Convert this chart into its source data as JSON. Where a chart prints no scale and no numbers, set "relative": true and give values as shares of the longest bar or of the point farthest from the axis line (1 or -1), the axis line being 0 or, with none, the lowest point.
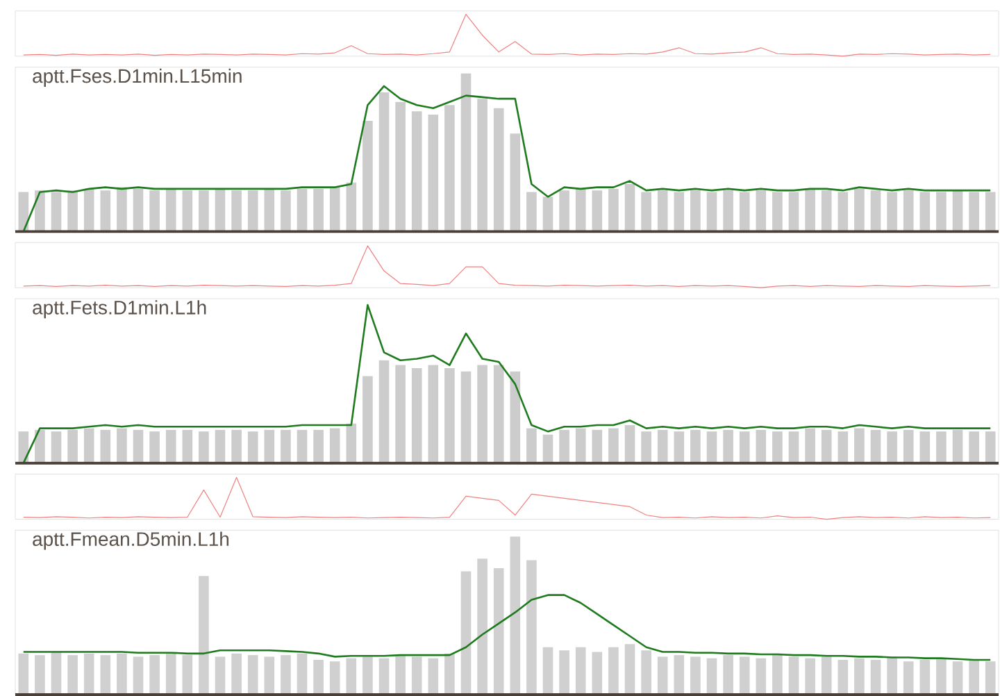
{
  "chart_data": [
    {
      "type": "line",
      "relative": true,
      "categories": [
        null,
        null,
        null,
        null,
        null,
        null,
        null,
        null,
        null,
        null,
        null,
        null,
        null,
        null,
        null,
        null,
        null,
        null,
        null,
        null,
        null,
        null,
        null,
        null,
        null,
        null,
        null,
        null,
        null,
        null,
        null,
        null,
        null,
        null,
        null,
        null,
        null,
        null,
        null,
        null,
        null,
        null,
        null,
        null,
        null,
        null,
        null,
        null,
        null,
        null,
        null,
        null,
        null,
        null,
        null,
        null,
        null,
        null,
        null,
        null
      ],
      "series": [
        {
          "color": "#f08080",
          "values": [
            0.03,
            0.04,
            0.02,
            0.05,
            0.03,
            0.04,
            0.03,
            0.05,
            0.02,
            0.04,
            0.03,
            0.05,
            0.04,
            0.03,
            0.05,
            0.04,
            0.03,
            0.06,
            0.05,
            0.08,
            0.25,
            0.06,
            0.04,
            0.05,
            0.03,
            0.06,
            0.1,
            1.0,
            0.5,
            0.1,
            0.35,
            0.05,
            0.04,
            0.06,
            0.03,
            0.05,
            0.04,
            0.06,
            0.05,
            0.1,
            0.2,
            0.06,
            0.05,
            0.08,
            0.1,
            0.2,
            0.06,
            0.04,
            0.05,
            0.03,
            0.0,
            0.05,
            0.04,
            0.06,
            0.05,
            0.03,
            0.04,
            0.05,
            0.03,
            0.04
          ]
        }
      ]
    },
    {
      "type": "bar",
      "relative": true,
      "title": "aptt.Fses.D1min.L15min",
      "categories": [
        null,
        null,
        null,
        null,
        null,
        null,
        null,
        null,
        null,
        null,
        null,
        null,
        null,
        null,
        null,
        null,
        null,
        null,
        null,
        null,
        null,
        null,
        null,
        null,
        null,
        null,
        null,
        null,
        null,
        null,
        null,
        null,
        null,
        null,
        null,
        null,
        null,
        null,
        null,
        null,
        null,
        null,
        null,
        null,
        null,
        null,
        null,
        null,
        null,
        null,
        null,
        null,
        null,
        null,
        null,
        null,
        null,
        null,
        null,
        null
      ],
      "series": [
        {
          "color": "#cccccc",
          "values": [
            0.25,
            0.26,
            0.25,
            0.26,
            0.27,
            0.26,
            0.28,
            0.27,
            0.26,
            0.27,
            0.26,
            0.26,
            0.27,
            0.26,
            0.26,
            0.27,
            0.26,
            0.27,
            0.27,
            0.28,
            0.31,
            0.7,
            0.88,
            0.82,
            0.76,
            0.74,
            0.8,
            1.0,
            0.84,
            0.78,
            0.62,
            0.25,
            0.22,
            0.26,
            0.27,
            0.26,
            0.27,
            0.3,
            0.25,
            0.26,
            0.25,
            0.26,
            0.25,
            0.26,
            0.25,
            0.26,
            0.25,
            0.25,
            0.27,
            0.26,
            0.25,
            0.27,
            0.26,
            0.25,
            0.26,
            0.25,
            0.25,
            0.26,
            0.25,
            0.25
          ]
        },
        {
          "type": "line",
          "color": "#1e7b1e",
          "values": [
            0.0,
            0.25,
            0.26,
            0.25,
            0.27,
            0.28,
            0.27,
            0.28,
            0.27,
            0.27,
            0.27,
            0.27,
            0.27,
            0.27,
            0.27,
            0.27,
            0.27,
            0.28,
            0.28,
            0.28,
            0.3,
            0.8,
            0.92,
            0.84,
            0.8,
            0.78,
            0.82,
            0.86,
            0.85,
            0.84,
            0.84,
            0.3,
            0.22,
            0.28,
            0.27,
            0.28,
            0.28,
            0.32,
            0.26,
            0.27,
            0.26,
            0.27,
            0.26,
            0.27,
            0.26,
            0.27,
            0.26,
            0.26,
            0.27,
            0.27,
            0.26,
            0.28,
            0.27,
            0.26,
            0.27,
            0.26,
            0.26,
            0.26,
            0.26,
            0.26
          ]
        }
      ]
    },
    {
      "type": "line",
      "relative": true,
      "categories": [
        null,
        null,
        null,
        null,
        null,
        null,
        null,
        null,
        null,
        null,
        null,
        null,
        null,
        null,
        null,
        null,
        null,
        null,
        null,
        null,
        null,
        null,
        null,
        null,
        null,
        null,
        null,
        null,
        null,
        null,
        null,
        null,
        null,
        null,
        null,
        null,
        null,
        null,
        null,
        null,
        null,
        null,
        null,
        null,
        null,
        null,
        null,
        null,
        null,
        null,
        null,
        null,
        null,
        null,
        null,
        null,
        null,
        null,
        null,
        null
      ],
      "series": [
        {
          "color": "#f08080",
          "values": [
            0.04,
            0.05,
            0.03,
            0.05,
            0.04,
            0.06,
            0.04,
            0.05,
            0.03,
            0.05,
            0.04,
            0.06,
            0.05,
            0.04,
            0.05,
            0.04,
            0.03,
            0.05,
            0.04,
            0.06,
            0.1,
            1.0,
            0.4,
            0.1,
            0.08,
            0.05,
            0.1,
            0.5,
            0.5,
            0.1,
            0.06,
            0.05,
            0.04,
            0.06,
            0.05,
            0.04,
            0.05,
            0.06,
            0.04,
            0.05,
            0.03,
            0.05,
            0.04,
            0.05,
            0.03,
            0.0,
            0.04,
            0.05,
            0.03,
            0.05,
            0.04,
            0.03,
            0.05,
            0.04,
            0.03,
            0.05,
            0.04,
            0.03,
            0.04,
            0.05
          ]
        }
      ]
    },
    {
      "type": "bar",
      "relative": true,
      "title": "aptt.Fets.D1min.L1h",
      "categories": [
        null,
        null,
        null,
        null,
        null,
        null,
        null,
        null,
        null,
        null,
        null,
        null,
        null,
        null,
        null,
        null,
        null,
        null,
        null,
        null,
        null,
        null,
        null,
        null,
        null,
        null,
        null,
        null,
        null,
        null,
        null,
        null,
        null,
        null,
        null,
        null,
        null,
        null,
        null,
        null,
        null,
        null,
        null,
        null,
        null,
        null,
        null,
        null,
        null,
        null,
        null,
        null,
        null,
        null,
        null,
        null,
        null,
        null,
        null,
        null
      ],
      "series": [
        {
          "color": "#cccccc",
          "values": [
            0.2,
            0.21,
            0.2,
            0.21,
            0.22,
            0.21,
            0.22,
            0.21,
            0.2,
            0.21,
            0.21,
            0.2,
            0.21,
            0.21,
            0.2,
            0.21,
            0.21,
            0.21,
            0.21,
            0.22,
            0.25,
            0.55,
            0.65,
            0.62,
            0.6,
            0.62,
            0.6,
            0.58,
            0.62,
            0.62,
            0.58,
            0.22,
            0.18,
            0.21,
            0.22,
            0.21,
            0.22,
            0.24,
            0.2,
            0.21,
            0.2,
            0.21,
            0.2,
            0.21,
            0.2,
            0.21,
            0.2,
            0.2,
            0.22,
            0.21,
            0.2,
            0.22,
            0.21,
            0.2,
            0.21,
            0.2,
            0.2,
            0.21,
            0.2,
            0.2
          ]
        },
        {
          "type": "line",
          "color": "#1e7b1e",
          "values": [
            0.0,
            0.22,
            0.22,
            0.22,
            0.23,
            0.24,
            0.23,
            0.24,
            0.23,
            0.23,
            0.23,
            0.23,
            0.23,
            0.23,
            0.23,
            0.23,
            0.23,
            0.24,
            0.24,
            0.24,
            0.24,
            1.0,
            0.7,
            0.65,
            0.66,
            0.68,
            0.62,
            0.82,
            0.66,
            0.64,
            0.5,
            0.24,
            0.2,
            0.23,
            0.23,
            0.24,
            0.24,
            0.27,
            0.22,
            0.23,
            0.22,
            0.23,
            0.22,
            0.23,
            0.22,
            0.23,
            0.22,
            0.22,
            0.23,
            0.23,
            0.22,
            0.24,
            0.23,
            0.22,
            0.23,
            0.22,
            0.22,
            0.22,
            0.22,
            0.22
          ]
        }
      ]
    },
    {
      "type": "line",
      "relative": true,
      "categories": [
        null,
        null,
        null,
        null,
        null,
        null,
        null,
        null,
        null,
        null,
        null,
        null,
        null,
        null,
        null,
        null,
        null,
        null,
        null,
        null,
        null,
        null,
        null,
        null,
        null,
        null,
        null,
        null,
        null,
        null,
        null,
        null,
        null,
        null,
        null,
        null,
        null,
        null,
        null,
        null,
        null,
        null,
        null,
        null,
        null,
        null,
        null,
        null,
        null,
        null,
        null,
        null,
        null,
        null,
        null,
        null,
        null,
        null,
        null,
        null
      ],
      "series": [
        {
          "color": "#f08080",
          "values": [
            0.05,
            0.04,
            0.06,
            0.05,
            0.03,
            0.05,
            0.04,
            0.06,
            0.05,
            0.04,
            0.05,
            0.7,
            0.05,
            1.0,
            0.06,
            0.05,
            0.04,
            0.06,
            0.05,
            0.04,
            0.05,
            0.03,
            0.04,
            0.05,
            0.04,
            0.03,
            0.05,
            0.55,
            0.5,
            0.45,
            0.1,
            0.6,
            0.55,
            0.5,
            0.45,
            0.4,
            0.35,
            0.3,
            0.1,
            0.04,
            0.05,
            0.03,
            0.06,
            0.04,
            0.05,
            0.03,
            0.08,
            0.04,
            0.05,
            0.0,
            0.04,
            0.06,
            0.04,
            0.05,
            0.03,
            0.06,
            0.04,
            0.05,
            0.03,
            0.04
          ]
        }
      ]
    },
    {
      "type": "bar",
      "relative": true,
      "title": "aptt.Fmean.D5min.L1h",
      "categories": [
        null,
        null,
        null,
        null,
        null,
        null,
        null,
        null,
        null,
        null,
        null,
        null,
        null,
        null,
        null,
        null,
        null,
        null,
        null,
        null,
        null,
        null,
        null,
        null,
        null,
        null,
        null,
        null,
        null,
        null,
        null,
        null,
        null,
        null,
        null,
        null,
        null,
        null,
        null,
        null,
        null,
        null,
        null,
        null,
        null,
        null,
        null,
        null,
        null,
        null,
        null,
        null,
        null,
        null,
        null,
        null,
        null,
        null,
        null,
        null
      ],
      "series": [
        {
          "color": "#d0d0d0",
          "values": [
            0.26,
            0.25,
            0.27,
            0.25,
            0.26,
            0.25,
            0.26,
            0.24,
            0.25,
            0.26,
            0.25,
            0.75,
            0.24,
            0.26,
            0.25,
            0.24,
            0.25,
            0.26,
            0.22,
            0.21,
            0.23,
            0.24,
            0.23,
            0.25,
            0.24,
            0.23,
            0.26,
            0.78,
            0.86,
            0.8,
            1.0,
            0.85,
            0.3,
            0.28,
            0.3,
            0.27,
            0.3,
            0.32,
            0.28,
            0.24,
            0.25,
            0.24,
            0.23,
            0.25,
            0.24,
            0.23,
            0.26,
            0.24,
            0.23,
            0.24,
            0.22,
            0.23,
            0.22,
            0.24,
            0.21,
            0.22,
            0.23,
            0.21,
            0.22,
            0.21
          ]
        },
        {
          "type": "line",
          "color": "#1e7b1e",
          "values": [
            0.27,
            0.27,
            0.27,
            0.27,
            0.27,
            0.27,
            0.27,
            0.265,
            0.265,
            0.265,
            0.26,
            0.26,
            0.28,
            0.28,
            0.28,
            0.28,
            0.275,
            0.27,
            0.26,
            0.24,
            0.245,
            0.245,
            0.245,
            0.25,
            0.25,
            0.25,
            0.25,
            0.3,
            0.38,
            0.45,
            0.52,
            0.6,
            0.63,
            0.63,
            0.58,
            0.51,
            0.44,
            0.37,
            0.3,
            0.27,
            0.27,
            0.265,
            0.265,
            0.26,
            0.26,
            0.255,
            0.255,
            0.25,
            0.25,
            0.245,
            0.245,
            0.24,
            0.24,
            0.235,
            0.235,
            0.23,
            0.23,
            0.225,
            0.22,
            0.22
          ]
        }
      ]
    }
  ]
}
